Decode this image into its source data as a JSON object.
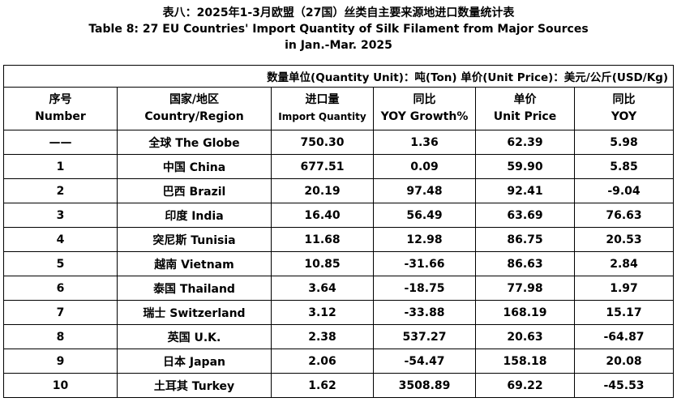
{
  "title": {
    "cn": "表八：2025年1-3月欧盟（27国）丝类自主要来源地进口数量统计表",
    "en_line1": "Table 8: 27 EU Countries' Import Quantity of Silk Filament from Major Sources",
    "en_line2": "in Jan.-Mar. 2025"
  },
  "unit_note": "数量单位(Quantity Unit)：吨(Ton)  单价(Unit Price)：美元/公斤(USD/Kg)",
  "headers": {
    "number": {
      "cn": "序号",
      "en": "Number"
    },
    "country": {
      "cn": "国家/地区",
      "en": "Country/Region"
    },
    "import_qty": {
      "cn": "进口量",
      "en": "Import Quantity"
    },
    "yoy_growth": {
      "cn": "同比",
      "en": "YOY Growth%"
    },
    "unit_price": {
      "cn": "单价",
      "en": "Unit Price"
    },
    "yoy": {
      "cn": "同比",
      "en": "YOY"
    }
  },
  "rows": [
    {
      "number": "——",
      "country": "全球 The Globe",
      "import_qty": "750.30",
      "yoy_growth": "1.36",
      "unit_price": "62.39",
      "yoy": "5.98"
    },
    {
      "number": "1",
      "country": "中国 China",
      "import_qty": "677.51",
      "yoy_growth": "0.09",
      "unit_price": "59.90",
      "yoy": "5.85"
    },
    {
      "number": "2",
      "country": "巴西 Brazil",
      "import_qty": "20.19",
      "yoy_growth": "97.48",
      "unit_price": "92.41",
      "yoy": "-9.04"
    },
    {
      "number": "3",
      "country": "印度 India",
      "import_qty": "16.40",
      "yoy_growth": "56.49",
      "unit_price": "63.69",
      "yoy": "76.63"
    },
    {
      "number": "4",
      "country": "突尼斯 Tunisia",
      "import_qty": "11.68",
      "yoy_growth": "12.98",
      "unit_price": "86.75",
      "yoy": "20.53"
    },
    {
      "number": "5",
      "country": "越南 Vietnam",
      "import_qty": "10.85",
      "yoy_growth": "-31.66",
      "unit_price": "86.63",
      "yoy": "2.84"
    },
    {
      "number": "6",
      "country": "泰国 Thailand",
      "import_qty": "3.64",
      "yoy_growth": "-18.75",
      "unit_price": "77.98",
      "yoy": "1.97"
    },
    {
      "number": "7",
      "country": "瑞士 Switzerland",
      "import_qty": "3.12",
      "yoy_growth": "-33.88",
      "unit_price": "168.19",
      "yoy": "15.17"
    },
    {
      "number": "8",
      "country": "英国 U.K.",
      "import_qty": "2.38",
      "yoy_growth": "537.27",
      "unit_price": "20.63",
      "yoy": "-64.87"
    },
    {
      "number": "9",
      "country": "日本 Japan",
      "import_qty": "2.06",
      "yoy_growth": "-54.47",
      "unit_price": "158.18",
      "yoy": "20.08"
    },
    {
      "number": "10",
      "country": "土耳其 Turkey",
      "import_qty": "1.62",
      "yoy_growth": "3508.89",
      "unit_price": "69.22",
      "yoy": "-45.53"
    }
  ]
}
